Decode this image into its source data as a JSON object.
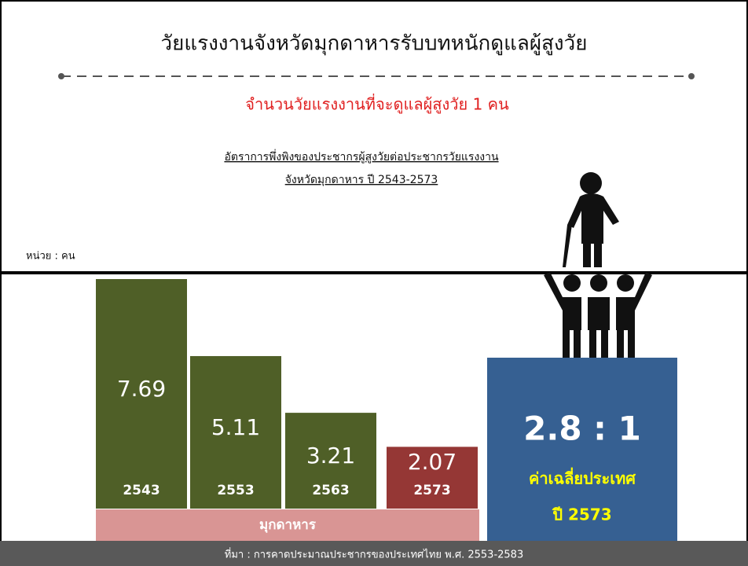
{
  "chart_data": {
    "type": "bar",
    "title": "วัยแรงงานจังหวัดมุกดาหารรับบทหนักดูแลผู้สูงวัย",
    "subtitle": "จำนวนวัยแรงงานที่จะดูแลผู้สูงวัย  1  คน",
    "chart_title": [
      "อัตราการพึ่งพิงของประชากรผู้สูงวัยต่อประชากรวัยแรงงาน",
      "จังหวัดมุกดาหาร ปี 2543-2573"
    ],
    "unit": "หน่วย : คน",
    "categories": [
      "2543",
      "2553",
      "2563",
      "2573"
    ],
    "values": [
      7.69,
      5.11,
      3.21,
      2.07
    ],
    "colors": [
      "#4f5f27",
      "#4f5f27",
      "#4f5f27",
      "#953735"
    ],
    "group_label": "มุกดาหาร",
    "national": {
      "ratio": "2.8 : 1",
      "label": "ค่าเฉลี่ยประเทศ",
      "year": "ปี 2573",
      "color": "#366092"
    },
    "source": "ที่มา : การคาดประมาณประชากรของประเทศไทย พ.ศ.  2553-2583"
  }
}
